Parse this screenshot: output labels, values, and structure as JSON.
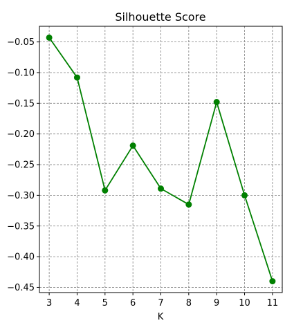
{
  "chart_data": {
    "type": "line",
    "title": "Silhouette Score",
    "xlabel": "K",
    "ylabel": "",
    "x": [
      3,
      4,
      5,
      6,
      7,
      8,
      9,
      10,
      11
    ],
    "series": [
      {
        "name": "Silhouette Score",
        "color": "#008000",
        "marker": "circle",
        "values": [
          -0.043,
          -0.108,
          -0.292,
          -0.219,
          -0.289,
          -0.315,
          -0.148,
          -0.3,
          -0.44
        ]
      }
    ],
    "xticks": [
      3,
      4,
      5,
      6,
      7,
      8,
      9,
      10,
      11
    ],
    "xtick_labels": [
      "3",
      "4",
      "5",
      "6",
      "7",
      "8",
      "9",
      "10",
      "11"
    ],
    "yticks": [
      -0.05,
      -0.1,
      -0.15,
      -0.2,
      -0.25,
      -0.3,
      -0.35,
      -0.4,
      -0.45
    ],
    "ytick_labels": [
      "−0.05",
      "−0.10",
      "−0.15",
      "−0.20",
      "−0.25",
      "−0.30",
      "−0.35",
      "−0.40",
      "−0.45"
    ],
    "xlim": [
      2.65,
      11.35
    ],
    "ylim": [
      -0.4585,
      -0.0245
    ],
    "grid": true,
    "grid_color": "#808080"
  }
}
